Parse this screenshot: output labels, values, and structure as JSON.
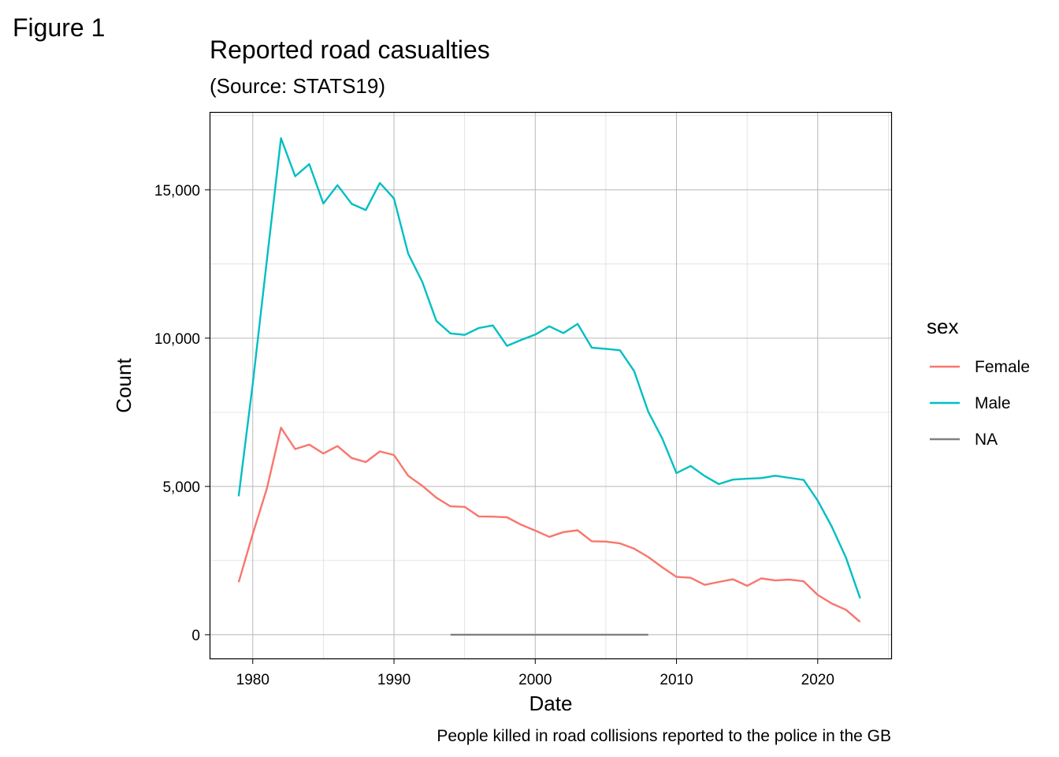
{
  "figure_label": "Figure 1",
  "chart_data": {
    "type": "line",
    "title": "Reported road casualties",
    "subtitle": "(Source: STATS19)",
    "caption": "People killed in road collisions reported to the police in the GB",
    "xlabel": "Date",
    "ylabel": "Count",
    "xlim": [
      1977,
      2025.2
    ],
    "ylim": [
      -800,
      17600
    ],
    "x_ticks": [
      1980,
      1990,
      2000,
      2010,
      2020
    ],
    "x_tick_labels": [
      "1980",
      "1990",
      "2000",
      "2010",
      "2020"
    ],
    "y_ticks": [
      0,
      5000,
      10000,
      15000
    ],
    "y_tick_labels": [
      "0",
      "5,000",
      "10,000",
      "15,000"
    ],
    "grid": true,
    "legend": {
      "title": "sex",
      "position": "right"
    },
    "series": [
      {
        "name": "Female",
        "color": "#F8766D",
        "x": [
          1979,
          1980,
          1981,
          1982,
          1983,
          1984,
          1985,
          1986,
          1987,
          1988,
          1989,
          1990,
          1991,
          1992,
          1993,
          1994,
          1995,
          1996,
          1997,
          1998,
          1999,
          2000,
          2001,
          2002,
          2003,
          2004,
          2005,
          2006,
          2007,
          2008,
          2009,
          2010,
          2011,
          2012,
          2013,
          2014,
          2015,
          2016,
          2017,
          2018,
          2019,
          2020,
          2021,
          2022,
          2023
        ],
        "y": [
          1770,
          3400,
          4930,
          6980,
          6260,
          6410,
          6110,
          6360,
          5960,
          5820,
          6180,
          6060,
          5360,
          5020,
          4620,
          4330,
          4310,
          3990,
          3980,
          3960,
          3710,
          3510,
          3300,
          3460,
          3520,
          3150,
          3140,
          3080,
          2900,
          2620,
          2270,
          1950,
          1920,
          1680,
          1780,
          1870,
          1650,
          1900,
          1830,
          1860,
          1800,
          1340,
          1050,
          840,
          430
        ]
      },
      {
        "name": "Male",
        "color": "#00BFC4",
        "x": [
          1979,
          1980,
          1981,
          1982,
          1983,
          1984,
          1985,
          1986,
          1987,
          1988,
          1989,
          1990,
          1991,
          1992,
          1993,
          1994,
          1995,
          1996,
          1997,
          1998,
          1999,
          2000,
          2001,
          2002,
          2003,
          2004,
          2005,
          2006,
          2007,
          2008,
          2009,
          2010,
          2011,
          2012,
          2013,
          2014,
          2015,
          2016,
          2017,
          2018,
          2019,
          2020,
          2021,
          2022,
          2023
        ],
        "y": [
          4670,
          8470,
          12630,
          16740,
          15460,
          15870,
          14540,
          15160,
          14530,
          14320,
          15230,
          14710,
          12850,
          11900,
          10580,
          10160,
          10110,
          10340,
          10430,
          9740,
          9940,
          10120,
          10400,
          10170,
          10480,
          9680,
          9640,
          9590,
          8890,
          7520,
          6610,
          5450,
          5690,
          5350,
          5080,
          5230,
          5260,
          5280,
          5360,
          5290,
          5220,
          4520,
          3640,
          2600,
          1230
        ]
      },
      {
        "name": "NA",
        "color": "#808080",
        "x": [
          1994,
          2008
        ],
        "y": [
          0,
          0
        ]
      }
    ]
  }
}
